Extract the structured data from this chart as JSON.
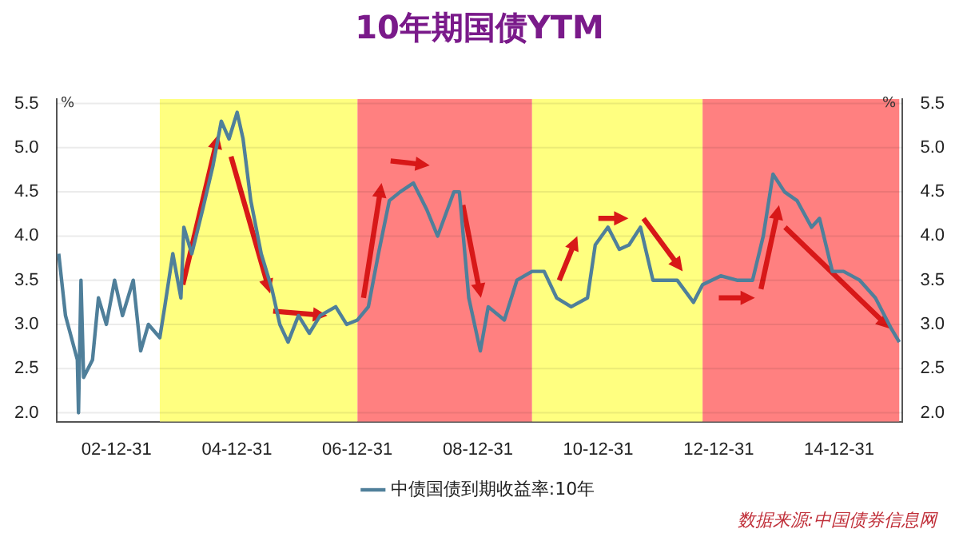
{
  "chart_data": {
    "type": "line",
    "title": "10年期国债YTM",
    "ylabel": "%",
    "y2label": "%",
    "x": [
      "2002-01-15",
      "2002-02-25",
      "2002-05-08",
      "2002-05-15",
      "2002-05-30",
      "2002-06-15",
      "2002-08-08",
      "2002-09-13",
      "2002-10-31",
      "2002-12-20",
      "2003-02-06",
      "2003-04-12",
      "2003-05-27",
      "2003-07-13",
      "2003-09-20",
      "2003-10-20",
      "2003-12-08",
      "2004-01-26",
      "2004-02-13",
      "2004-04-01",
      "2004-06-06",
      "2004-08-08",
      "2004-09-27",
      "2004-11-13",
      "2005-01-01",
      "2005-02-06",
      "2005-03-25",
      "2005-05-27",
      "2005-07-31",
      "2005-09-17",
      "2005-11-06",
      "2006-01-08",
      "2006-03-15",
      "2006-05-20",
      "2006-08-22",
      "2006-10-27",
      "2007-01-01",
      "2007-03-08",
      "2007-05-08",
      "2007-07-13",
      "2007-09-17",
      "2007-12-06",
      "2008-02-25",
      "2008-05-01",
      "2008-08-08",
      "2008-09-10",
      "2008-11-06",
      "2009-01-15",
      "2009-03-04",
      "2009-06-10",
      "2009-08-25",
      "2009-11-25",
      "2010-02-06",
      "2010-04-23",
      "2010-07-20",
      "2010-10-27",
      "2010-12-13",
      "2011-02-28",
      "2011-05-08",
      "2011-07-06",
      "2011-09-13",
      "2011-11-28",
      "2012-02-25",
      "2012-04-23",
      "2012-07-31",
      "2012-09-24",
      "2013-01-12",
      "2013-04-20",
      "2013-07-24",
      "2013-09-27",
      "2013-11-25",
      "2014-02-03",
      "2014-04-20",
      "2014-07-17",
      "2014-09-03",
      "2014-11-20",
      "2015-01-27",
      "2015-05-05",
      "2015-08-08",
      "2015-11-13",
      "2015-12-31"
    ],
    "series": [
      {
        "name": "中债国债到期收益率:10年",
        "color": "#4f7f9a",
        "values": [
          3.8,
          3.1,
          2.6,
          2.0,
          3.5,
          2.4,
          2.6,
          3.3,
          3.0,
          3.5,
          3.1,
          3.5,
          2.7,
          3.0,
          2.85,
          3.2,
          3.8,
          3.3,
          4.1,
          3.8,
          4.3,
          4.8,
          5.3,
          5.1,
          5.4,
          5.1,
          4.4,
          3.8,
          3.4,
          3.0,
          2.8,
          3.1,
          2.9,
          3.1,
          3.2,
          3.0,
          3.05,
          3.2,
          3.8,
          4.4,
          4.5,
          4.6,
          4.3,
          4.0,
          4.5,
          4.5,
          3.3,
          2.7,
          3.2,
          3.05,
          3.5,
          3.6,
          3.6,
          3.3,
          3.2,
          3.3,
          3.9,
          4.1,
          3.85,
          3.9,
          4.1,
          3.5,
          3.5,
          3.5,
          3.25,
          3.45,
          3.55,
          3.5,
          3.5,
          4.0,
          4.7,
          4.5,
          4.4,
          4.1,
          4.2,
          3.6,
          3.6,
          3.5,
          3.3,
          2.95,
          2.8
        ]
      }
    ],
    "xlim": [
      "2002-01-01",
      "2016-01-20"
    ],
    "xticks": [
      {
        "value": "2002-12-31",
        "label": "02-12-31"
      },
      {
        "value": "2004-12-31",
        "label": "04-12-31"
      },
      {
        "value": "2006-12-31",
        "label": "06-12-31"
      },
      {
        "value": "2008-12-31",
        "label": "08-12-31"
      },
      {
        "value": "2010-12-31",
        "label": "10-12-31"
      },
      {
        "value": "2012-12-31",
        "label": "12-12-31"
      },
      {
        "value": "2014-12-31",
        "label": "14-12-31"
      }
    ],
    "ylim": [
      1.9,
      5.55
    ],
    "yticks": [
      {
        "value": 2,
        "label": "2.0"
      },
      2.5,
      {
        "value": 3,
        "label": "3.0"
      },
      3.5,
      {
        "value": 4,
        "label": "4.0"
      },
      4.5,
      {
        "value": 5,
        "label": "5.0"
      },
      5.5
    ],
    "y2lim": [
      1.9,
      5.55
    ],
    "y2ticks": [
      {
        "value": 2,
        "label": "2.0"
      },
      2.5,
      {
        "value": 3,
        "label": "3.0"
      },
      3.5,
      {
        "value": 4,
        "label": "4.0"
      },
      4.5,
      {
        "value": 5,
        "label": "5.0"
      },
      5.5
    ],
    "bands": [
      {
        "axis": "x",
        "from": "2003-09-20",
        "to": "2007-01-01",
        "color": "#ffff80"
      },
      {
        "axis": "x",
        "from": "2007-01-01",
        "to": "2009-11-25",
        "color": "#ff8080"
      },
      {
        "axis": "x",
        "from": "2009-11-25",
        "to": "2012-09-24",
        "color": "#ffff80"
      },
      {
        "axis": "x",
        "from": "2012-09-24",
        "to": "2015-12-31",
        "color": "#ff8080"
      }
    ],
    "grid": "y",
    "legend": "bottom",
    "marker": "none",
    "line_style": "solid",
    "annotations": [
      "数据来源:中国债券信息网"
    ]
  }
}
